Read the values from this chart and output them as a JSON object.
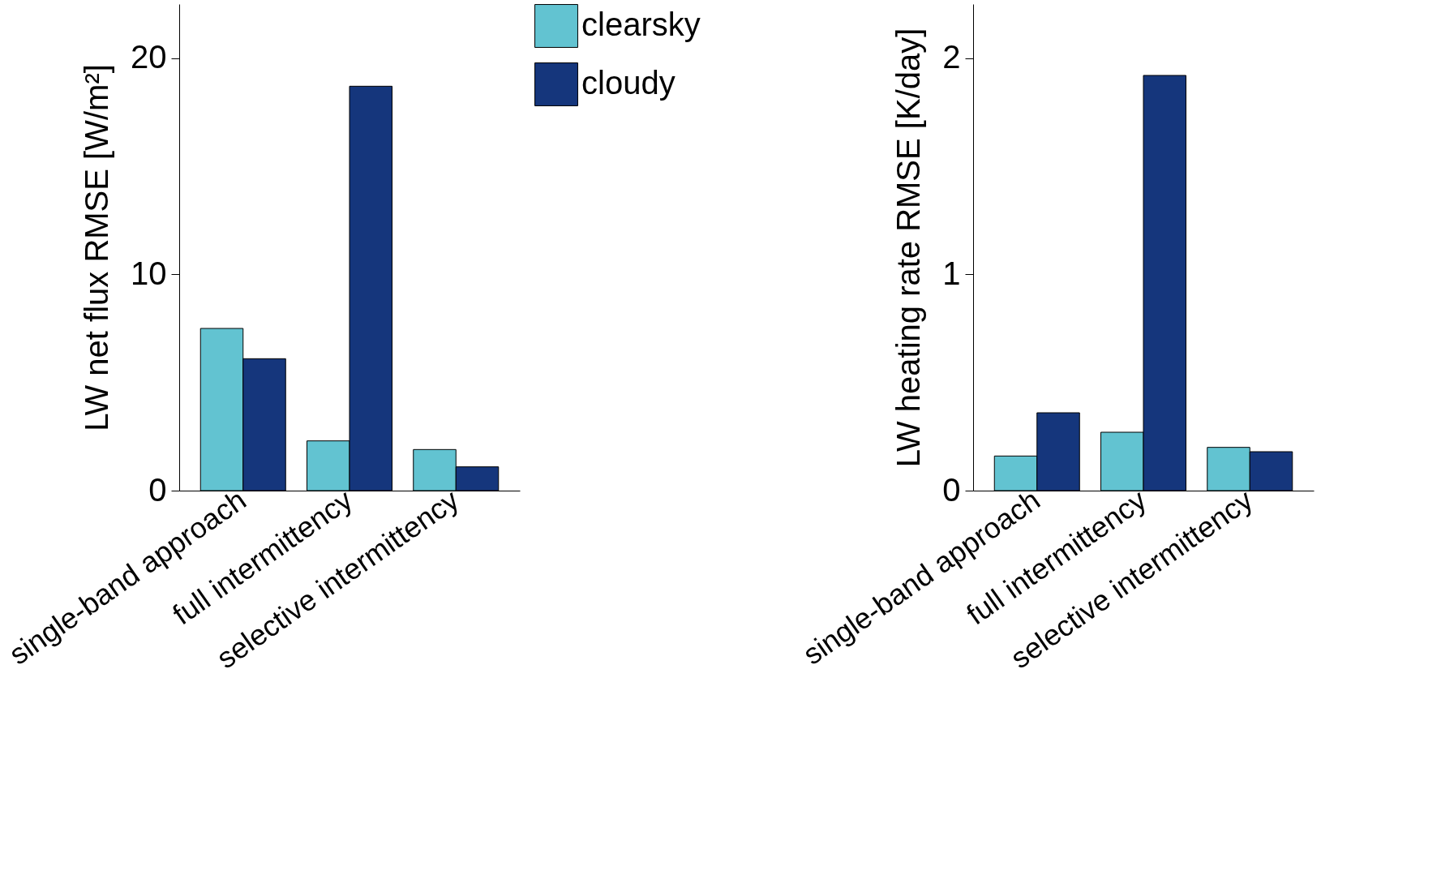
{
  "chart_data": [
    {
      "type": "bar",
      "ylabel": "LW net flux RMSE [W/m²]",
      "categories": [
        "single-band approach",
        "full intermittency",
        "selective intermittency"
      ],
      "series": [
        {
          "name": "clearsky",
          "color": "#62c3d1",
          "values": [
            7.5,
            2.3,
            1.9
          ]
        },
        {
          "name": "cloudy",
          "color": "#15367c",
          "values": [
            6.1,
            18.7,
            1.1
          ]
        }
      ],
      "ylim": [
        0,
        22.5
      ],
      "yticks": [
        0,
        10,
        20
      ],
      "grid": false,
      "legend": "top right"
    },
    {
      "type": "bar",
      "ylabel": "LW heating rate RMSE [K/day]",
      "categories": [
        "single-band approach",
        "full intermittency",
        "selective intermittency"
      ],
      "series": [
        {
          "color": "#62c3d1",
          "values": [
            0.16,
            0.27,
            0.2
          ]
        },
        {
          "color": "#15367c",
          "values": [
            0.36,
            1.92,
            0.18
          ]
        }
      ],
      "ylim": [
        0,
        2.25
      ],
      "yticks": [
        0,
        1,
        2
      ],
      "grid": false,
      "legend": false
    }
  ]
}
